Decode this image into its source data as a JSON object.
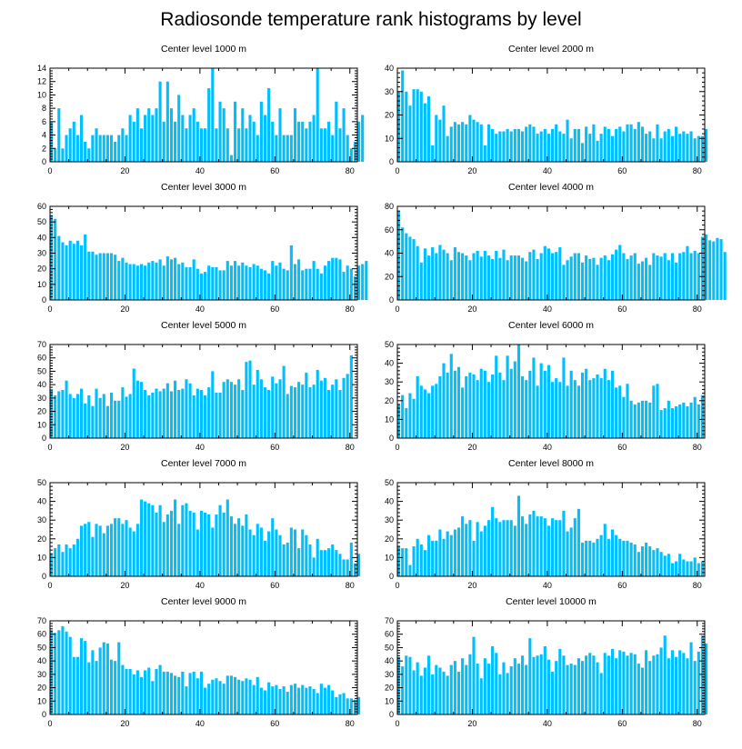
{
  "figure": {
    "title": "Radiosonde temperature rank histograms by level",
    "bar_color": "#00BFFF"
  },
  "chart_data": [
    {
      "type": "bar",
      "title": "Center level 1000 m",
      "xlim": [
        0,
        82
      ],
      "xticks": [
        0,
        20,
        40,
        60,
        80
      ],
      "ylim": [
        0,
        14
      ],
      "yticks": [
        0,
        2,
        4,
        6,
        8,
        10,
        12,
        14
      ],
      "values": [
        6,
        2,
        8,
        2,
        4,
        5,
        6,
        4,
        7,
        3,
        2,
        4,
        5,
        4,
        4,
        4,
        4,
        3,
        4,
        5,
        4,
        7,
        6,
        8,
        5,
        7,
        8,
        7,
        8,
        12,
        6,
        12,
        8,
        6,
        10,
        7,
        5,
        7,
        8,
        6,
        5,
        5,
        11,
        14,
        5,
        9,
        8,
        5,
        1,
        9,
        5,
        8,
        5,
        7,
        6,
        4,
        9,
        7,
        11,
        6,
        4,
        8,
        4,
        4,
        4,
        8,
        6,
        6,
        5,
        6,
        7,
        14,
        5,
        5,
        6,
        4,
        9,
        5,
        8,
        4,
        2,
        3,
        6,
        7
      ]
    },
    {
      "type": "bar",
      "title": "Center level 2000 m",
      "xlim": [
        0,
        82
      ],
      "xticks": [
        0,
        20,
        40,
        60,
        80
      ],
      "ylim": [
        0,
        40
      ],
      "yticks": [
        0,
        10,
        20,
        30,
        40
      ],
      "values": [
        30,
        39,
        30,
        24,
        31,
        31,
        30,
        25,
        28,
        7,
        20,
        18,
        24,
        11,
        15,
        17,
        16,
        17,
        16,
        20,
        18,
        17,
        16,
        7,
        16,
        14,
        12,
        13,
        13,
        14,
        13,
        14,
        14,
        13,
        15,
        16,
        15,
        12,
        13,
        14,
        12,
        14,
        16,
        13,
        12,
        18,
        10,
        14,
        14,
        8,
        15,
        12,
        16,
        9,
        12,
        15,
        14,
        11,
        14,
        15,
        13,
        16,
        16,
        14,
        17,
        15,
        12,
        13,
        10,
        16,
        10,
        13,
        14,
        11,
        15,
        12,
        13,
        12,
        13,
        10,
        11,
        11,
        14
      ]
    },
    {
      "type": "bar",
      "title": "Center level 3000 m",
      "xlim": [
        0,
        82
      ],
      "xticks": [
        0,
        20,
        40,
        60,
        80
      ],
      "ylim": [
        0,
        60
      ],
      "yticks": [
        0,
        10,
        20,
        30,
        40,
        50,
        60
      ],
      "values": [
        54,
        52,
        41,
        37,
        35,
        38,
        36,
        38,
        35,
        42,
        31,
        31,
        29,
        30,
        30,
        30,
        30,
        29,
        25,
        27,
        24,
        23,
        23,
        22,
        23,
        22,
        24,
        25,
        24,
        26,
        22,
        28,
        26,
        27,
        23,
        24,
        21,
        21,
        26,
        20,
        17,
        18,
        22,
        21,
        21,
        19,
        19,
        25,
        22,
        25,
        22,
        24,
        22,
        21,
        23,
        22,
        20,
        19,
        17,
        25,
        22,
        24,
        20,
        19,
        35,
        23,
        26,
        19,
        20,
        20,
        25,
        20,
        17,
        22,
        25,
        27,
        27,
        26,
        18,
        22,
        20,
        15,
        22,
        23,
        25
      ]
    },
    {
      "type": "bar",
      "title": "Center level 4000 m",
      "xlim": [
        0,
        82
      ],
      "xticks": [
        0,
        20,
        40,
        60,
        80
      ],
      "ylim": [
        0,
        80
      ],
      "yticks": [
        0,
        20,
        40,
        60,
        80
      ],
      "values": [
        76,
        62,
        57,
        54,
        52,
        46,
        32,
        44,
        38,
        45,
        40,
        47,
        43,
        40,
        34,
        45,
        41,
        40,
        38,
        34,
        40,
        42,
        37,
        42,
        38,
        35,
        42,
        36,
        43,
        34,
        38,
        38,
        38,
        36,
        33,
        41,
        43,
        35,
        40,
        46,
        44,
        40,
        41,
        45,
        30,
        34,
        37,
        40,
        40,
        32,
        38,
        35,
        36,
        30,
        36,
        38,
        34,
        39,
        43,
        47,
        40,
        35,
        38,
        40,
        31,
        33,
        36,
        30,
        40,
        38,
        37,
        40,
        34,
        40,
        32,
        40,
        41,
        46,
        40,
        42,
        40,
        54,
        56,
        51,
        50,
        53,
        52,
        41
      ]
    },
    {
      "type": "bar",
      "title": "Center level 5000 m",
      "xlim": [
        0,
        82
      ],
      "xticks": [
        0,
        20,
        40,
        60,
        80
      ],
      "ylim": [
        0,
        70
      ],
      "yticks": [
        0,
        10,
        20,
        30,
        40,
        50,
        60,
        70
      ],
      "values": [
        36,
        32,
        35,
        36,
        43,
        33,
        30,
        33,
        37,
        26,
        32,
        24,
        37,
        30,
        33,
        24,
        34,
        28,
        28,
        38,
        31,
        33,
        52,
        43,
        42,
        36,
        32,
        34,
        37,
        35,
        37,
        41,
        35,
        43,
        36,
        37,
        44,
        41,
        32,
        37,
        36,
        32,
        38,
        50,
        34,
        34,
        42,
        44,
        42,
        40,
        44,
        36,
        57,
        58,
        40,
        51,
        44,
        38,
        36,
        46,
        41,
        44,
        54,
        33,
        39,
        38,
        42,
        40,
        49,
        38,
        40,
        51,
        43,
        45,
        36,
        40,
        44,
        36,
        45,
        48,
        62
      ]
    },
    {
      "type": "bar",
      "title": "Center level 6000 m",
      "xlim": [
        0,
        82
      ],
      "xticks": [
        0,
        20,
        40,
        60,
        80
      ],
      "ylim": [
        0,
        50
      ],
      "yticks": [
        0,
        10,
        20,
        30,
        40,
        50
      ],
      "values": [
        18,
        23,
        16,
        24,
        21,
        33,
        28,
        26,
        24,
        28,
        29,
        33,
        40,
        35,
        45,
        36,
        38,
        27,
        33,
        35,
        34,
        31,
        37,
        36,
        30,
        34,
        44,
        35,
        31,
        44,
        37,
        41,
        50,
        33,
        31,
        36,
        43,
        28,
        40,
        36,
        39,
        30,
        32,
        30,
        43,
        28,
        36,
        31,
        28,
        35,
        37,
        31,
        32,
        34,
        32,
        37,
        31,
        36,
        27,
        28,
        22,
        29,
        20,
        18,
        19,
        20,
        20,
        19,
        28,
        29,
        15,
        16,
        20,
        16,
        17,
        18,
        19,
        17,
        19,
        22,
        18,
        23
      ]
    },
    {
      "type": "bar",
      "title": "Center level 7000 m",
      "xlim": [
        0,
        82
      ],
      "xticks": [
        0,
        20,
        40,
        60,
        80
      ],
      "ylim": [
        0,
        50
      ],
      "yticks": [
        0,
        10,
        20,
        30,
        40,
        50
      ],
      "values": [
        12,
        15,
        17,
        13,
        17,
        15,
        17,
        20,
        27,
        28,
        29,
        21,
        28,
        27,
        23,
        27,
        28,
        31,
        31,
        28,
        30,
        26,
        24,
        28,
        41,
        40,
        39,
        38,
        34,
        38,
        29,
        33,
        35,
        41,
        28,
        38,
        39,
        35,
        34,
        25,
        35,
        34,
        33,
        26,
        33,
        38,
        34,
        41,
        32,
        28,
        31,
        27,
        33,
        25,
        22,
        28,
        26,
        19,
        24,
        31,
        25,
        22,
        17,
        18,
        26,
        25,
        15,
        25,
        22,
        17,
        10,
        20,
        14,
        14,
        15,
        17,
        14,
        12,
        9,
        9,
        18,
        7,
        12
      ]
    },
    {
      "type": "bar",
      "title": "Center level 8000 m",
      "xlim": [
        0,
        82
      ],
      "xticks": [
        0,
        20,
        40,
        60,
        80
      ],
      "ylim": [
        0,
        50
      ],
      "yticks": [
        0,
        10,
        20,
        30,
        40,
        50
      ],
      "values": [
        16,
        15,
        15,
        6,
        16,
        20,
        17,
        14,
        22,
        19,
        19,
        25,
        20,
        24,
        22,
        25,
        26,
        32,
        28,
        30,
        19,
        29,
        24,
        27,
        30,
        37,
        31,
        29,
        30,
        30,
        30,
        27,
        43,
        32,
        28,
        33,
        35,
        32,
        32,
        31,
        27,
        31,
        30,
        30,
        35,
        24,
        26,
        31,
        36,
        18,
        19,
        19,
        18,
        20,
        22,
        28,
        20,
        25,
        22,
        20,
        19,
        19,
        18,
        17,
        13,
        16,
        18,
        16,
        14,
        15,
        13,
        11,
        12,
        7,
        8,
        12,
        9,
        8,
        8,
        10,
        7,
        8
      ]
    },
    {
      "type": "bar",
      "title": "Center level 9000 m",
      "xlim": [
        0,
        82
      ],
      "xticks": [
        0,
        20,
        40,
        60,
        80
      ],
      "ylim": [
        0,
        70
      ],
      "yticks": [
        0,
        10,
        20,
        30,
        40,
        50,
        60,
        70
      ],
      "values": [
        63,
        61,
        63,
        66,
        62,
        58,
        43,
        43,
        57,
        55,
        39,
        48,
        40,
        50,
        54,
        53,
        41,
        40,
        54,
        37,
        34,
        34,
        30,
        33,
        28,
        33,
        35,
        25,
        34,
        37,
        32,
        32,
        31,
        29,
        28,
        32,
        21,
        31,
        32,
        27,
        32,
        20,
        23,
        26,
        27,
        25,
        23,
        29,
        29,
        28,
        26,
        25,
        27,
        26,
        22,
        28,
        20,
        18,
        24,
        21,
        22,
        19,
        21,
        17,
        22,
        23,
        20,
        22,
        20,
        21,
        19,
        16,
        23,
        20,
        22,
        18,
        13,
        15,
        16,
        12,
        12,
        11,
        13
      ]
    },
    {
      "type": "bar",
      "title": "Center level 10000 m",
      "xlim": [
        0,
        82
      ],
      "xticks": [
        0,
        20,
        40,
        60,
        80
      ],
      "ylim": [
        0,
        70
      ],
      "yticks": [
        0,
        10,
        20,
        30,
        40,
        50,
        60,
        70
      ],
      "values": [
        43,
        36,
        44,
        43,
        33,
        39,
        29,
        35,
        44,
        30,
        37,
        35,
        32,
        29,
        37,
        40,
        32,
        42,
        37,
        45,
        58,
        38,
        27,
        42,
        38,
        51,
        46,
        30,
        39,
        31,
        36,
        42,
        38,
        44,
        37,
        57,
        43,
        44,
        45,
        51,
        41,
        32,
        40,
        49,
        44,
        37,
        38,
        37,
        42,
        40,
        44,
        46,
        44,
        39,
        31,
        46,
        44,
        49,
        42,
        48,
        47,
        44,
        46,
        45,
        38,
        35,
        48,
        40,
        44,
        45,
        50,
        59,
        42,
        48,
        43,
        48,
        46,
        42,
        54,
        40,
        47,
        59,
        53
      ]
    }
  ]
}
